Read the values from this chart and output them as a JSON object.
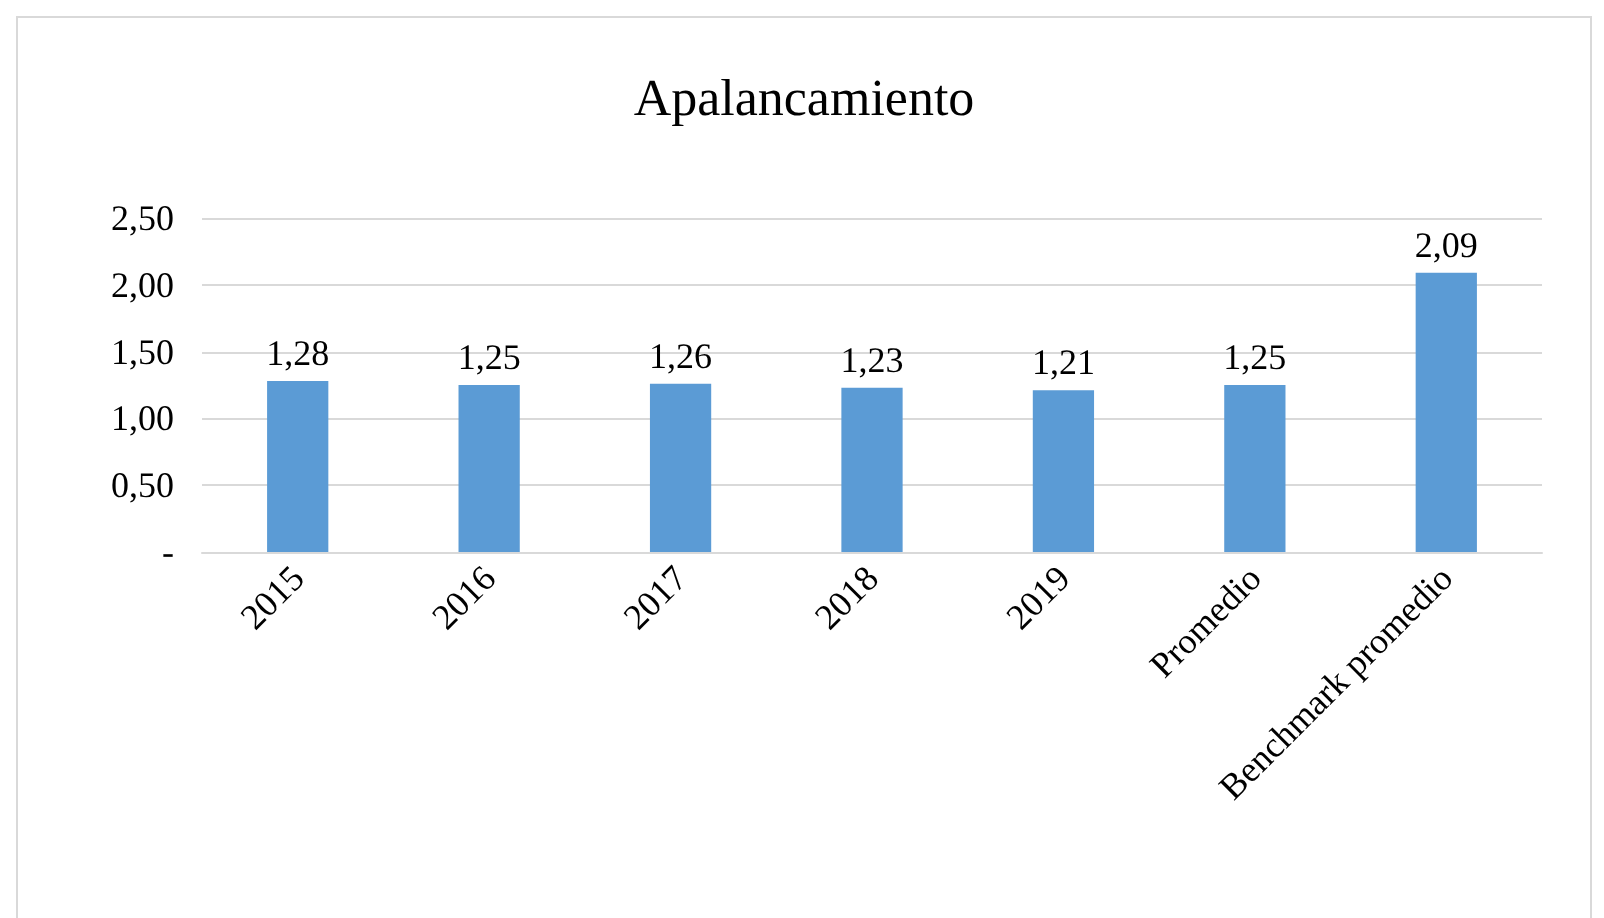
{
  "chart_data": {
    "type": "bar",
    "title": "Apalancamiento",
    "categories": [
      "2015",
      "2016",
      "2017",
      "2018",
      "2019",
      "Promedio",
      "Benchmark promedio"
    ],
    "values": [
      1.28,
      1.25,
      1.26,
      1.23,
      1.21,
      1.25,
      2.09
    ],
    "value_labels": [
      "1,28",
      "1,25",
      "1,26",
      "1,23",
      "1,21",
      "1,25",
      "2,09"
    ],
    "color": "#5b9bd5",
    "ylim": [
      0,
      2.5
    ],
    "yticks": [
      {
        "value": 0,
        "label": "-"
      },
      {
        "value": 0.5,
        "label": "0,50"
      },
      {
        "value": 1,
        "label": "1,00"
      },
      {
        "value": 1.5,
        "label": "1,50"
      },
      {
        "value": 2,
        "label": "2,00"
      },
      {
        "value": 2.5,
        "label": "2,50"
      }
    ],
    "grid": "y"
  }
}
